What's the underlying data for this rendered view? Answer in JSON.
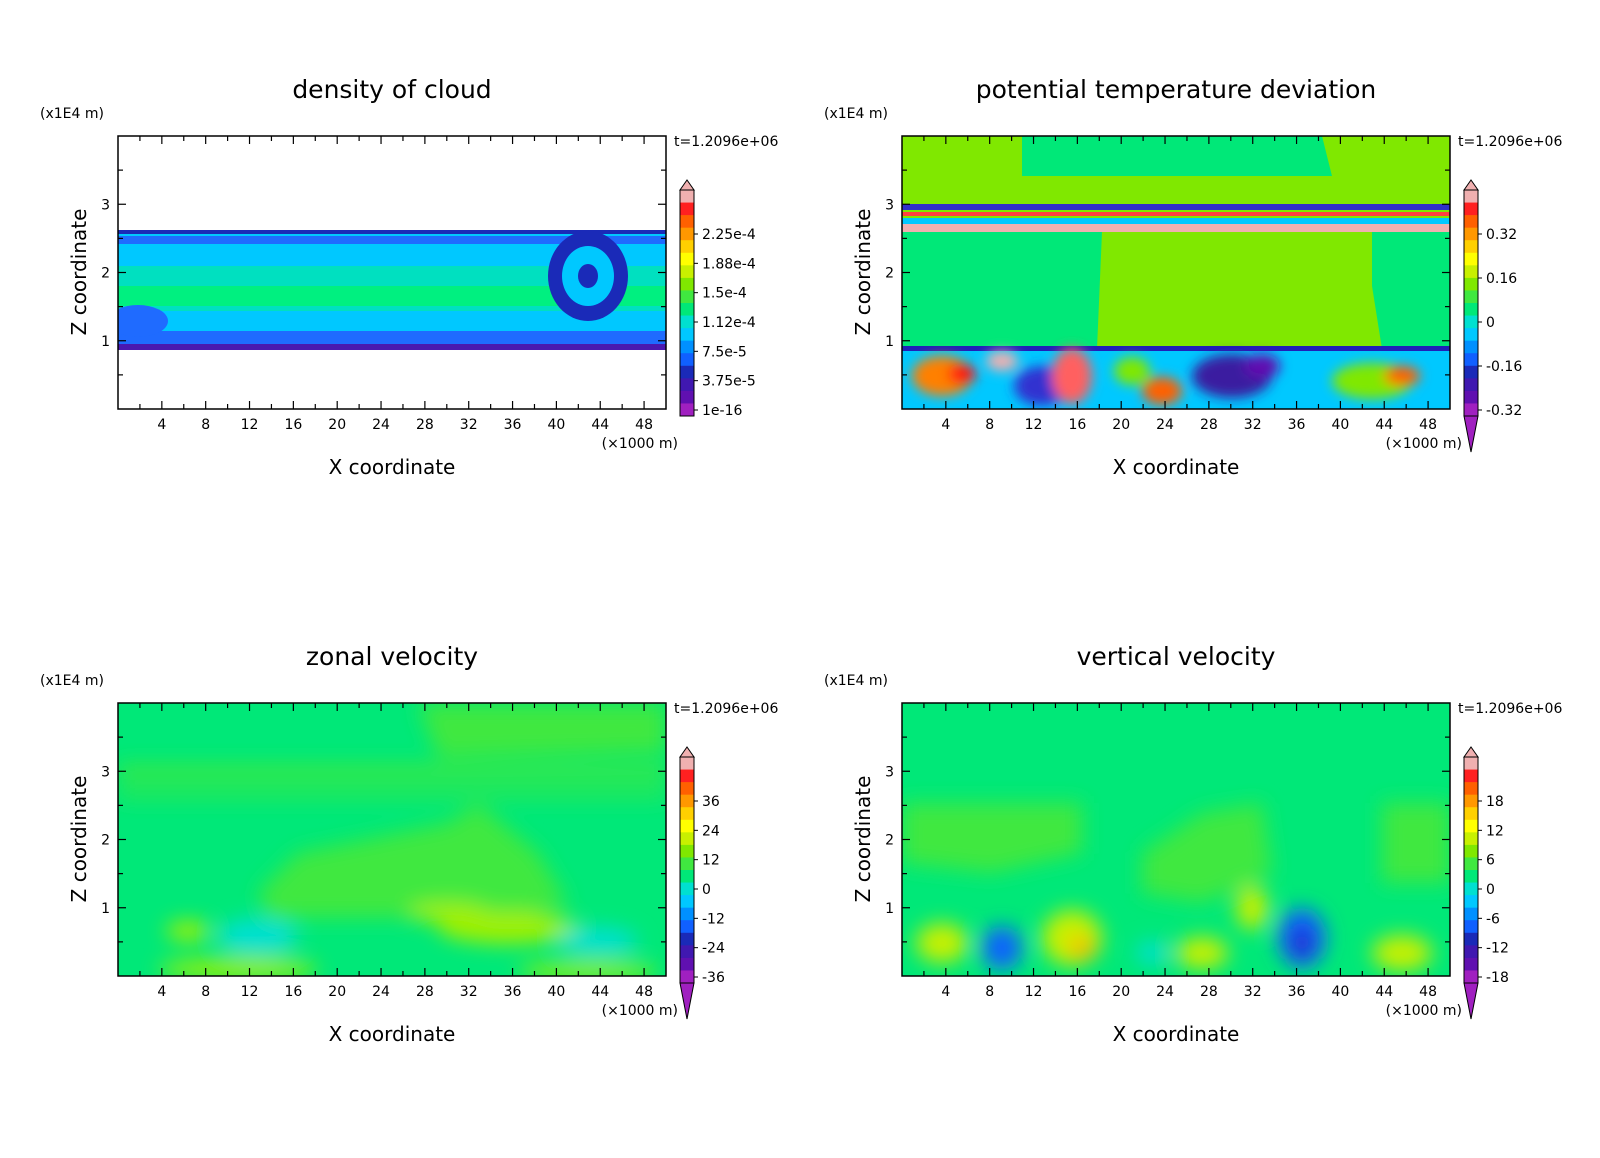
{
  "chart_data": [
    {
      "type": "heatmap",
      "title": "density of cloud",
      "xlabel": "X coordinate",
      "ylabel": "Z coordinate",
      "xunit": "(×1000 m)",
      "yunit": "(x1E4 m)",
      "time_label": "t=1.2096e+06",
      "xlim": [
        0,
        50
      ],
      "ylim": [
        0,
        4
      ],
      "xticks": [
        "4",
        "8",
        "12",
        "16",
        "20",
        "24",
        "28",
        "32",
        "36",
        "40",
        "44",
        "48"
      ],
      "yticks": [
        "1",
        "2",
        "3"
      ],
      "colorbar_labels": [
        "2.25e-4",
        "1.88e-4",
        "1.5e-4",
        "1.12e-4",
        "7.5e-5",
        "3.75e-5",
        "1e-16"
      ]
    },
    {
      "type": "heatmap",
      "title": "potential temperature deviation",
      "xlabel": "X coordinate",
      "ylabel": "Z coordinate",
      "xunit": "(×1000 m)",
      "yunit": "(x1E4 m)",
      "time_label": "t=1.2096e+06",
      "xlim": [
        0,
        50
      ],
      "ylim": [
        0,
        4
      ],
      "xticks": [
        "4",
        "8",
        "12",
        "16",
        "20",
        "24",
        "28",
        "32",
        "36",
        "40",
        "44",
        "48"
      ],
      "yticks": [
        "1",
        "2",
        "3"
      ],
      "colorbar_labels": [
        "0.32",
        "0.16",
        "0",
        "-0.16",
        "-0.32"
      ]
    },
    {
      "type": "heatmap",
      "title": "zonal velocity",
      "xlabel": "X coordinate",
      "ylabel": "Z coordinate",
      "xunit": "(×1000 m)",
      "yunit": "(x1E4 m)",
      "time_label": "t=1.2096e+06",
      "xlim": [
        0,
        50
      ],
      "ylim": [
        0,
        4
      ],
      "xticks": [
        "4",
        "8",
        "12",
        "16",
        "20",
        "24",
        "28",
        "32",
        "36",
        "40",
        "44",
        "48"
      ],
      "yticks": [
        "1",
        "2",
        "3"
      ],
      "colorbar_labels": [
        "36",
        "24",
        "12",
        "0",
        "-12",
        "-24",
        "-36"
      ]
    },
    {
      "type": "heatmap",
      "title": "vertical velocity",
      "xlabel": "X coordinate",
      "ylabel": "Z coordinate",
      "xunit": "(×1000 m)",
      "yunit": "(x1E4 m)",
      "time_label": "t=1.2096e+06",
      "xlim": [
        0,
        50
      ],
      "ylim": [
        0,
        4
      ],
      "xticks": [
        "4",
        "8",
        "12",
        "16",
        "20",
        "24",
        "28",
        "32",
        "36",
        "40",
        "44",
        "48"
      ],
      "yticks": [
        "1",
        "2",
        "3"
      ],
      "colorbar_labels": [
        "18",
        "12",
        "6",
        "0",
        "-6",
        "-12",
        "-18"
      ]
    }
  ]
}
